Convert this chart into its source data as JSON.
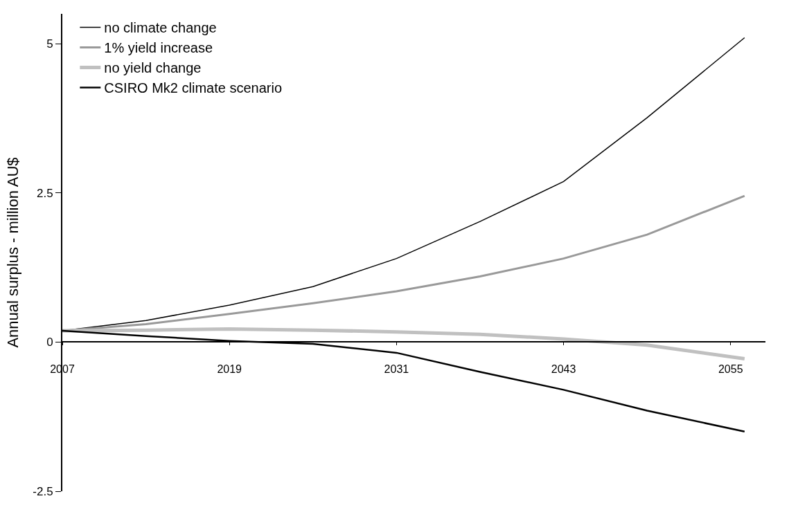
{
  "chart_data": {
    "type": "line",
    "ylabel": "Annual surplus - million AU$",
    "x": [
      2007,
      2013,
      2019,
      2025,
      2031,
      2037,
      2043,
      2049,
      2056
    ],
    "series": [
      {
        "name": "no climate change",
        "color": "#000000",
        "values": [
          0.19,
          0.36,
          0.62,
          0.93,
          1.4,
          2.02,
          2.69,
          3.76,
          5.1
        ]
      },
      {
        "name": "1% yield increase",
        "color": "#999999",
        "values": [
          0.19,
          0.3,
          0.47,
          0.65,
          0.85,
          1.1,
          1.4,
          1.8,
          2.45
        ]
      },
      {
        "name": "no yield change",
        "color": "#c0c0c0",
        "values": [
          0.19,
          0.2,
          0.22,
          0.2,
          0.17,
          0.13,
          0.05,
          -0.05,
          -0.28
        ]
      },
      {
        "name": "CSIRO Mk2 climate scenario",
        "color": "#000000",
        "values": [
          0.19,
          0.1,
          0.02,
          -0.03,
          -0.18,
          -0.5,
          -0.8,
          -1.15,
          -1.5
        ]
      }
    ],
    "xlim": [
      2007,
      2057.5
    ],
    "xticks": [
      2007,
      2019,
      2031,
      2043,
      2055
    ],
    "ylim": [
      -2.5,
      5.5
    ],
    "yticks": [
      -2.5,
      0,
      2.5,
      5
    ],
    "legend": "top left",
    "marker": "none",
    "line_style": "solid"
  }
}
